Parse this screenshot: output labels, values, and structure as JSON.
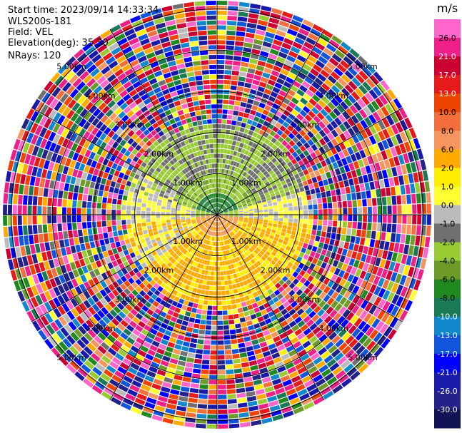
{
  "header": {
    "start_time": "Start time: 2023/09/14 14:33:34",
    "instrument": "WLS200s-181",
    "field": "Field: VEL",
    "elevation": "Elevation(deg): 35.30",
    "nrays": "NRays: 120"
  },
  "chart_data": {
    "type": "heatmap",
    "subtype": "polar-ppi",
    "field": "VEL",
    "units": "m/s",
    "range_rings_km": [
      1,
      2,
      3,
      4,
      5
    ],
    "range_ring_labels": [
      "1.00km",
      "2.00km",
      "3.00km",
      "4.00km",
      "5.00km"
    ],
    "max_range_km": 5.2,
    "nrays": 120,
    "azimuth_spokes_deg": [
      0,
      30,
      60,
      90,
      120,
      150,
      180,
      210,
      240,
      270,
      300,
      330
    ],
    "colorbar": {
      "label": "m/s",
      "ticks": [
        "26.0",
        "21.0",
        "17.0",
        "13.0",
        "10.0",
        "8.0",
        "6.0",
        "2.0",
        "1.0",
        "0.0",
        "-1.0",
        "-2.0",
        "-4.0",
        "-6.0",
        "-8.0",
        "-10.0",
        "-13.0",
        "-17.0",
        "-21.0",
        "-26.0",
        "-30.0"
      ],
      "colors": [
        "#FF66CC",
        "#EE1F88",
        "#CC0033",
        "#E61A1A",
        "#EE4400",
        "#F26E3C",
        "#F79560",
        "#FFAA00",
        "#FFEE00",
        "#FFFF33",
        "#BBBBBB",
        "#707070",
        "#99CC33",
        "#6E9A28",
        "#208A20",
        "#1A7A55",
        "#1188CC",
        "#1155DD",
        "#0000FF",
        "#1A1AAA",
        "#222288",
        "#111155"
      ]
    },
    "valid_range_km": 2.1,
    "regions": [
      {
        "desc": "positive velocity (yellow/orange)",
        "azimuth_from_deg": 95,
        "azimuth_to_deg": 265,
        "values": [
          1.0,
          2.0,
          3.0,
          6.0
        ]
      },
      {
        "desc": "negative velocity (green)",
        "azimuth_from_deg": 285,
        "azimuth_to_deg": 75,
        "values": [
          -1.0,
          -2.0,
          -3.0,
          -6.0
        ]
      },
      {
        "desc": "near-zero (gray)",
        "azimuth_from_deg": 75,
        "azimuth_to_deg": 95,
        "values": [
          0.0,
          0.5,
          -0.5
        ]
      }
    ]
  }
}
